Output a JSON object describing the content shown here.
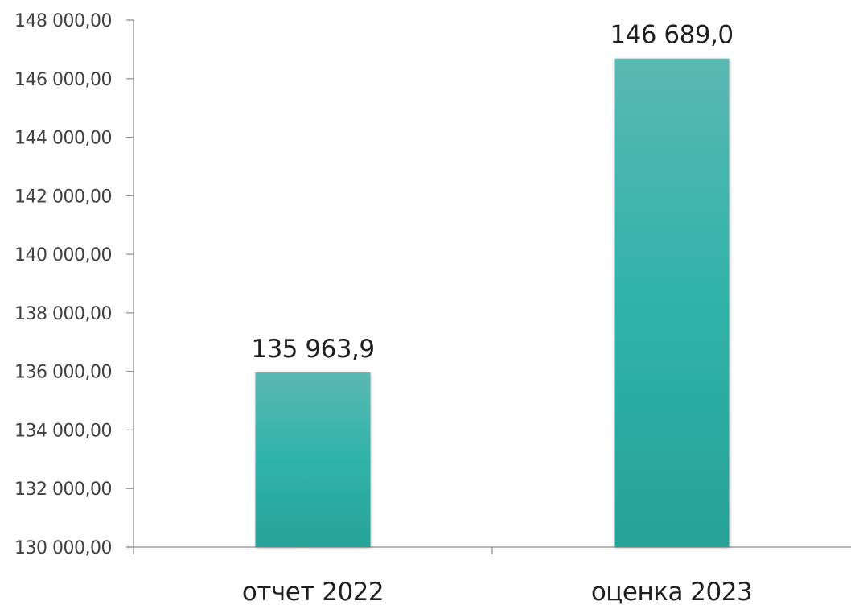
{
  "chart_data": {
    "type": "bar",
    "categories": [
      "отчет 2022",
      "оценка 2023"
    ],
    "values": [
      135963.9,
      146689.0
    ],
    "data_labels": [
      "135 963,9",
      "146 689,0"
    ],
    "ylim": [
      130000,
      148000
    ],
    "yticks": [
      130000,
      132000,
      134000,
      136000,
      138000,
      140000,
      142000,
      144000,
      146000,
      148000
    ],
    "ytick_labels": [
      "130 000,00",
      "132 000,00",
      "134 000,00",
      "136 000,00",
      "138 000,00",
      "140 000,00",
      "142 000,00",
      "144 000,00",
      "146 000,00",
      "148 000,00"
    ],
    "grid": false,
    "legend": "none",
    "colors": {
      "bar_top": "#5ab8b2",
      "bar_mid": "#2fb3a8",
      "bar_bottom": "#27a296",
      "axis": "#8c8c8c"
    }
  }
}
